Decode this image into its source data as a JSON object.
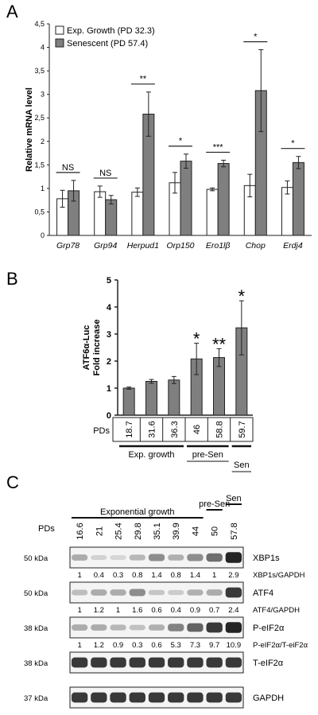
{
  "chart_data": [
    {
      "type": "bar",
      "panel": "A",
      "ylabel": "Relative mRNA level",
      "ylim": [
        0,
        4.5
      ],
      "yticks": [
        "0",
        "0,5",
        "1",
        "1,5",
        "2",
        "2,5",
        "3",
        "3,5",
        "4",
        "4,5"
      ],
      "categories": [
        "Grp78",
        "Grp94",
        "Herpud1",
        "Orp150",
        "Ero1lβ",
        "Chop",
        "Erdj4"
      ],
      "series": [
        {
          "name": "Exp. Growth (PD 32.3)",
          "color": "#ffffff",
          "values": [
            0.78,
            0.93,
            0.92,
            1.12,
            0.98,
            1.06,
            1.02
          ],
          "errors": [
            0.18,
            0.12,
            0.09,
            0.22,
            0.03,
            0.24,
            0.14
          ]
        },
        {
          "name": "Senescent (PD 57.4)",
          "color": "#7f7f7f",
          "values": [
            0.95,
            0.76,
            2.58,
            1.58,
            1.53,
            3.08,
            1.55
          ],
          "errors": [
            0.22,
            0.09,
            0.47,
            0.15,
            0.07,
            0.87,
            0.13
          ]
        }
      ],
      "significance": [
        "NS",
        "NS",
        "**",
        "*",
        "***",
        "*",
        "*"
      ],
      "legend_position": "top-left"
    },
    {
      "type": "bar",
      "panel": "B",
      "ylabel_lines": [
        "ATF6α-Luc",
        "Fold increase"
      ],
      "ylim": [
        0,
        5
      ],
      "yticks": [
        "0",
        "1",
        "2",
        "3",
        "4",
        "5"
      ],
      "x_row_label": "PDs",
      "categories": [
        "18.7",
        "31.6",
        "36.3",
        "46",
        "58.8",
        "59.7"
      ],
      "values": [
        1.0,
        1.25,
        1.3,
        2.08,
        2.13,
        3.23
      ],
      "errors": [
        0.04,
        0.07,
        0.13,
        0.58,
        0.33,
        1.0
      ],
      "significance": [
        "",
        "",
        "",
        "*",
        "**",
        "*"
      ],
      "groups": [
        {
          "label": "Exp. growth",
          "from": 0,
          "to": 2
        },
        {
          "label": "pre-Sen",
          "from": 3,
          "to": 4
        },
        {
          "label": "Sen",
          "from": 5,
          "to": 5
        }
      ],
      "bar_color": "#7f7f7f"
    }
  ],
  "panelC": {
    "letter": "C",
    "groups": [
      {
        "label": "Exponential growth",
        "from": 0,
        "to": 6
      },
      {
        "label": "pre-Sen",
        "from": 7,
        "to": 7
      },
      {
        "label": "Sen",
        "from": 8,
        "to": 8
      }
    ],
    "pds_label": "PDs",
    "pds": [
      "16.6",
      "21",
      "25.4",
      "29.8",
      "35.1",
      "39.9",
      "44",
      "50",
      "57.8"
    ],
    "blots": [
      {
        "kda": "50 kDa",
        "name": "XBP1s",
        "ratio_label": "XBP1s/GAPDH",
        "ratios": [
          "1",
          "0.4",
          "0.3",
          "0.8",
          "1.4",
          "0.8",
          "1.4",
          "1",
          "2.9"
        ],
        "intensity": [
          0.3,
          0.12,
          0.1,
          0.25,
          0.45,
          0.28,
          0.45,
          0.6,
          0.95
        ]
      },
      {
        "kda": "50 kDa",
        "name": "ATF4",
        "ratio_label": "ATF4/GAPDH",
        "ratios": [
          "1",
          "1.2",
          "1",
          "1.6",
          "0.6",
          "0.4",
          "0.9",
          "0.7",
          "2.4"
        ],
        "intensity": [
          0.22,
          0.3,
          0.3,
          0.45,
          0.18,
          0.15,
          0.28,
          0.3,
          0.85
        ]
      },
      {
        "kda": "38 kDa",
        "name": "P-eIF2α",
        "ratio_label": "P-eIF2α/T-eiF2α",
        "ratios": [
          "1",
          "1.2",
          "0.9",
          "0.3",
          "0.6",
          "5.3",
          "7.3",
          "9.7",
          "10.9"
        ],
        "intensity": [
          0.3,
          0.3,
          0.25,
          0.2,
          0.28,
          0.5,
          0.65,
          0.85,
          0.95
        ]
      },
      {
        "kda": "38 kDa",
        "name": "T-eIF2α",
        "ratio_label": "",
        "ratios": [],
        "intensity": [
          0.85,
          0.85,
          0.85,
          0.85,
          0.85,
          0.85,
          0.85,
          0.85,
          0.85
        ]
      },
      {
        "kda": "37 kDa",
        "name": "GAPDH",
        "ratio_label": "",
        "ratios": [],
        "intensity": [
          0.85,
          0.85,
          0.85,
          0.85,
          0.85,
          0.85,
          0.85,
          0.85,
          0.85
        ]
      }
    ]
  }
}
